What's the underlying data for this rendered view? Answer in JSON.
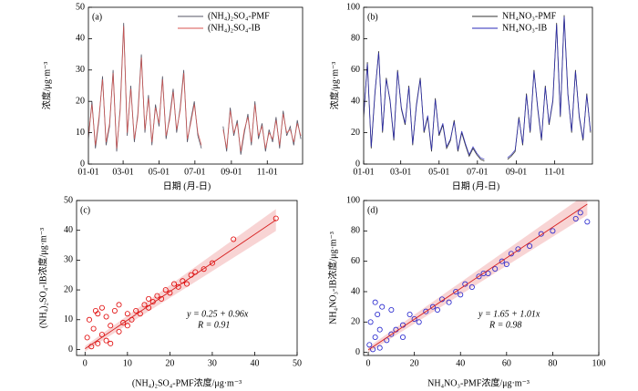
{
  "chart_data": [
    {
      "type": "line",
      "panel_label": "(a)",
      "ylabel": "浓度/μg·m⁻³",
      "xlabel": "日期 (月-日)",
      "xlim": [
        "01-01",
        "12-31"
      ],
      "xticks": [
        "01-01",
        "03-01",
        "05-01",
        "07-01",
        "09-01",
        "11-01"
      ],
      "ylim": [
        0,
        50
      ],
      "yticks": [
        0,
        10,
        20,
        30,
        40,
        50
      ],
      "x": [
        "01-01",
        "01-07",
        "01-13",
        "01-19",
        "01-25",
        "01-31",
        "02-06",
        "02-12",
        "02-18",
        "02-24",
        "03-02",
        "03-08",
        "03-14",
        "03-20",
        "03-26",
        "04-01",
        "04-07",
        "04-13",
        "04-19",
        "04-25",
        "05-01",
        "05-07",
        "05-13",
        "05-19",
        "05-25",
        "05-31",
        "06-06",
        "06-12",
        "06-18",
        "06-24",
        "06-30",
        "07-06",
        "07-12",
        "07-20",
        "08-18",
        "08-24",
        "08-30",
        "09-05",
        "09-11",
        "09-17",
        "09-23",
        "09-29",
        "10-05",
        "10-11",
        "10-17",
        "10-23",
        "10-29",
        "11-04",
        "11-10",
        "11-16",
        "11-22",
        "11-28",
        "12-04",
        "12-10",
        "12-16",
        "12-22",
        "12-28"
      ],
      "series": [
        {
          "name": "(NH₄)₂SO₄-PMF",
          "color": "#555566",
          "values": [
            8,
            20,
            5,
            14,
            28,
            6,
            12,
            30,
            4,
            18,
            45,
            9,
            25,
            7,
            16,
            35,
            10,
            22,
            6,
            19,
            12,
            28,
            8,
            15,
            24,
            10,
            18,
            30,
            7,
            14,
            20,
            9,
            5,
            null,
            12,
            4,
            18,
            9,
            14,
            3,
            10,
            16,
            6,
            20,
            8,
            13,
            4,
            11,
            7,
            15,
            5,
            17,
            9,
            12,
            6,
            14,
            8
          ]
        },
        {
          "name": "(NH₄)₂SO₄-IB",
          "color": "#d9534f",
          "values": [
            9,
            19,
            6,
            15,
            27,
            7,
            13,
            29,
            5,
            17,
            44,
            10,
            24,
            8,
            15,
            34,
            11,
            21,
            7,
            18,
            13,
            27,
            9,
            14,
            23,
            11,
            17,
            29,
            8,
            13,
            19,
            10,
            6,
            null,
            11,
            5,
            17,
            10,
            13,
            4,
            11,
            15,
            7,
            19,
            9,
            12,
            5,
            10,
            8,
            14,
            6,
            16,
            10,
            11,
            7,
            13,
            9
          ]
        }
      ],
      "legend": "upper right"
    },
    {
      "type": "line",
      "panel_label": "(b)",
      "ylabel": "浓度/μg·m⁻³",
      "xlabel": "日期 (月-日)",
      "xlim": [
        "01-01",
        "12-31"
      ],
      "xticks": [
        "01-01",
        "03-01",
        "05-01",
        "07-01",
        "09-01",
        "11-01"
      ],
      "ylim": [
        0,
        100
      ],
      "yticks": [
        0,
        20,
        40,
        60,
        80,
        100
      ],
      "x": [
        "01-01",
        "01-07",
        "01-13",
        "01-19",
        "01-25",
        "01-31",
        "02-06",
        "02-12",
        "02-18",
        "02-24",
        "03-02",
        "03-08",
        "03-14",
        "03-20",
        "03-26",
        "04-01",
        "04-07",
        "04-13",
        "04-19",
        "04-25",
        "05-01",
        "05-07",
        "05-13",
        "05-19",
        "05-25",
        "05-31",
        "06-06",
        "06-12",
        "06-18",
        "06-24",
        "06-30",
        "07-06",
        "07-12",
        "07-20",
        "08-18",
        "08-24",
        "08-30",
        "09-05",
        "09-11",
        "09-17",
        "09-23",
        "09-29",
        "10-05",
        "10-11",
        "10-17",
        "10-23",
        "10-29",
        "11-04",
        "11-10",
        "11-16",
        "11-22",
        "11-28",
        "12-04",
        "12-10",
        "12-16",
        "12-22",
        "12-28"
      ],
      "series": [
        {
          "name": "NH₄NO₃-PMF",
          "color": "#333333",
          "values": [
            30,
            65,
            10,
            45,
            72,
            20,
            55,
            40,
            15,
            60,
            35,
            25,
            50,
            12,
            38,
            55,
            20,
            30,
            8,
            42,
            18,
            25,
            10,
            15,
            28,
            8,
            20,
            12,
            5,
            10,
            6,
            3,
            2,
            null,
            3,
            5,
            8,
            30,
            12,
            45,
            20,
            60,
            35,
            15,
            50,
            25,
            40,
            90,
            30,
            95,
            45,
            20,
            60,
            30,
            15,
            45,
            20
          ]
        },
        {
          "name": "NH₄NO₃-IB",
          "color": "#2a2ab8",
          "values": [
            31,
            64,
            11,
            46,
            71,
            21,
            54,
            41,
            16,
            59,
            36,
            26,
            49,
            13,
            37,
            54,
            21,
            31,
            9,
            41,
            19,
            26,
            11,
            16,
            27,
            9,
            21,
            13,
            6,
            11,
            7,
            4,
            3,
            null,
            4,
            6,
            9,
            29,
            13,
            44,
            21,
            59,
            36,
            16,
            49,
            26,
            41,
            89,
            31,
            94,
            44,
            21,
            59,
            31,
            16,
            44,
            21
          ]
        }
      ],
      "legend": "upper right"
    },
    {
      "type": "scatter",
      "panel_label": "(c)",
      "ylabel": "(NH₄)₂SO₄-IB浓度/μg·m⁻³",
      "xlabel": "(NH₄)₂SO₄-PMF浓度/μg·m⁻³",
      "xlim": [
        -2,
        50
      ],
      "xticks": [
        0,
        10,
        20,
        30,
        40,
        50
      ],
      "ylim": [
        -2,
        50
      ],
      "yticks": [
        0,
        10,
        20,
        30,
        40,
        50
      ],
      "color": "#e00000",
      "fit_color": "#d62020",
      "fit": {
        "intercept": 0.25,
        "slope": 0.96,
        "from": 0,
        "to": 45
      },
      "annotations": [
        "y = 0.25 + 0.96x",
        "R = 0.91"
      ],
      "x": [
        0.5,
        1,
        1.5,
        2,
        2.5,
        3,
        3,
        4,
        4,
        5,
        5,
        6,
        6,
        7,
        8,
        8,
        9,
        10,
        10,
        11,
        12,
        13,
        14,
        15,
        15,
        16,
        17,
        18,
        19,
        20,
        21,
        22,
        23,
        24,
        25,
        26,
        28,
        30,
        35,
        45
      ],
      "values": [
        4,
        10,
        1,
        7,
        13,
        2,
        12,
        5,
        14,
        3,
        11,
        8,
        2,
        13,
        6,
        15,
        9,
        8,
        12,
        10,
        13,
        12,
        15,
        14,
        17,
        16,
        18,
        17,
        20,
        19,
        22,
        21,
        23,
        22,
        25,
        26,
        27,
        29,
        37,
        44
      ]
    },
    {
      "type": "scatter",
      "panel_label": "(d)",
      "ylabel": "NH₄NO₃-IB浓度/μg·m⁻³",
      "xlabel": "NH₄NO₃-PMF浓度/μg·m⁻³",
      "xlim": [
        -2,
        100
      ],
      "xticks": [
        0,
        20,
        40,
        60,
        80,
        100
      ],
      "ylim": [
        -2,
        100
      ],
      "yticks": [
        0,
        20,
        40,
        60,
        80,
        100
      ],
      "color": "#1f1fcc",
      "fit_color": "#d62020",
      "fit": {
        "intercept": 1.65,
        "slope": 1.01,
        "from": 0,
        "to": 95
      },
      "annotations": [
        "y = 1.65 + 1.01x",
        "R = 0.98"
      ],
      "x": [
        0.5,
        1,
        2,
        3,
        3,
        4,
        5,
        5,
        6,
        8,
        10,
        10,
        12,
        15,
        15,
        18,
        20,
        22,
        25,
        28,
        30,
        32,
        35,
        38,
        40,
        42,
        45,
        48,
        50,
        52,
        55,
        58,
        60,
        62,
        65,
        70,
        75,
        80,
        90,
        92,
        95
      ],
      "values": [
        5,
        20,
        2,
        33,
        10,
        25,
        3,
        15,
        30,
        8,
        12,
        28,
        15,
        18,
        10,
        25,
        22,
        20,
        27,
        30,
        28,
        35,
        33,
        40,
        38,
        45,
        43,
        50,
        52,
        52,
        55,
        60,
        58,
        65,
        68,
        70,
        78,
        80,
        88,
        92,
        86
      ]
    }
  ]
}
